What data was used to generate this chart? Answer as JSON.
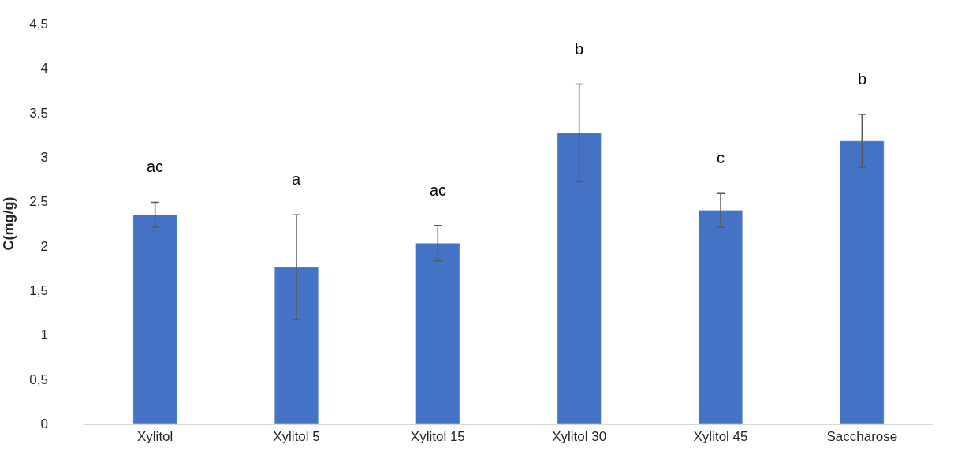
{
  "chart_data": {
    "type": "bar",
    "ylabel": "C(mg/g)",
    "categories": [
      "Xylitol",
      "Xylitol 5",
      "Xylitol 15",
      "Xylitol 30",
      "Xylitol 45",
      "Saccharose"
    ],
    "values": [
      2.35,
      1.76,
      2.03,
      3.27,
      2.4,
      3.18
    ],
    "errors": [
      0.14,
      0.59,
      0.2,
      0.55,
      0.19,
      0.3
    ],
    "color": "#4472c4",
    "ylim": [
      0,
      4.5
    ],
    "yticks": [
      0,
      {
        "value": 0.5,
        "label": "0,5"
      },
      1,
      {
        "value": 1.5,
        "label": "1,5"
      },
      2,
      {
        "value": 2.5,
        "label": "2,5"
      },
      3,
      {
        "value": 3.5,
        "label": "3,5"
      },
      4,
      {
        "value": 4.5,
        "label": "4,5"
      }
    ],
    "grid": false,
    "annotations": [
      "ac",
      "a",
      "ac",
      "b",
      "c",
      "b"
    ]
  }
}
